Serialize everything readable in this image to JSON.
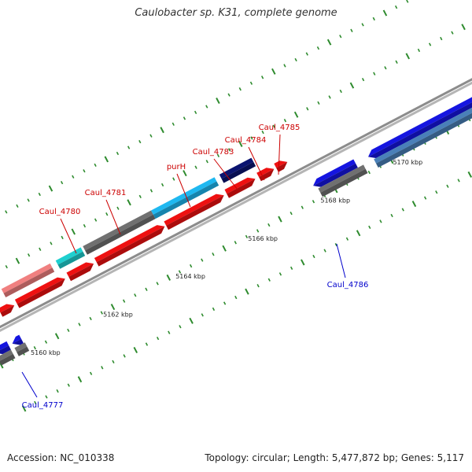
{
  "title": "Caulobacter sp. K31, complete genome",
  "footer": {
    "accession": "Accession: NC_010338",
    "summary": "Topology: circular; Length: 5,477,872 bp; Genes: 5,117"
  },
  "colors": {
    "backbone": "#8c8c8c",
    "tick": "#2e8b2e",
    "label_forward": "#cc0000",
    "label_reverse": "#0000cc",
    "red": "#ee1111",
    "pink": "#f08080",
    "gray": "#707070",
    "teal": "#1fcfcf",
    "sky": "#1fb8f0",
    "navy": "#0b1470",
    "blue": "#1515e0",
    "steel": "#4a80b8"
  },
  "scale": {
    "kbp_labels": [
      {
        "kbp": 5160,
        "label": "5160 kbp"
      },
      {
        "kbp": 5162,
        "label": "5162 kbp"
      },
      {
        "kbp": 5164,
        "label": "5164 kbp"
      },
      {
        "kbp": 5166,
        "label": "5166 kbp"
      },
      {
        "kbp": 5168,
        "label": "5168 kbp"
      },
      {
        "kbp": 5170,
        "label": "5170 kbp"
      }
    ]
  },
  "gene_labels": [
    {
      "id": "Caul_4777",
      "text": "Caul_4777",
      "strand": "reverse"
    },
    {
      "id": "Caul_4780",
      "text": "Caul_4780",
      "strand": "forward"
    },
    {
      "id": "Caul_4781",
      "text": "Caul_4781",
      "strand": "forward"
    },
    {
      "id": "purH",
      "text": "purH",
      "strand": "forward"
    },
    {
      "id": "Caul_4783",
      "text": "Caul_4783",
      "strand": "forward"
    },
    {
      "id": "Caul_4784",
      "text": "Caul_4784",
      "strand": "forward"
    },
    {
      "id": "Caul_4785",
      "text": "Caul_4785",
      "strand": "forward"
    },
    {
      "id": "Caul_4786",
      "text": "Caul_4786",
      "strand": "reverse"
    }
  ]
}
